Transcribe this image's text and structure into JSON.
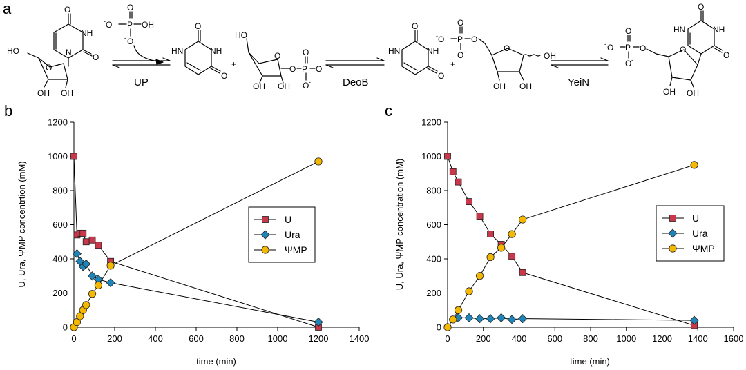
{
  "scheme": {
    "panel_label": "a",
    "enzymes": [
      "UP",
      "DeoB",
      "YeiN"
    ],
    "plus_signs": [
      "+",
      "+"
    ],
    "atoms": {
      "o": "O",
      "oh": "OH",
      "ho": "HO",
      "n": "N",
      "nh": "NH",
      "hn": "HN",
      "p": "P",
      "ominus": "O",
      "minus": "-"
    }
  },
  "chart_data": [
    {
      "panel_label": "b",
      "type": "line",
      "xlabel": "time (min)",
      "ylabel": "U, Ura,  ΨMP concentrtion (mM)",
      "xlim": [
        0,
        1400
      ],
      "ylim": [
        0,
        1200
      ],
      "xticks": [
        0,
        200,
        400,
        600,
        800,
        1000,
        1200,
        1400
      ],
      "yticks": [
        0,
        200,
        400,
        600,
        800,
        1000,
        1200
      ],
      "grid": false,
      "legend_position": "center-right",
      "series": [
        {
          "name": "U",
          "marker": "square",
          "color": "#c8374a",
          "x": [
            0,
            15,
            30,
            45,
            60,
            90,
            120,
            180,
            1200
          ],
          "y": [
            1000,
            540,
            550,
            550,
            500,
            510,
            480,
            385,
            0
          ]
        },
        {
          "name": "Ura",
          "marker": "diamond",
          "color": "#1f84b8",
          "x": [
            15,
            30,
            45,
            60,
            90,
            120,
            180,
            1200
          ],
          "y": [
            430,
            385,
            355,
            370,
            300,
            280,
            260,
            30
          ]
        },
        {
          "name": "ΨMP",
          "marker": "circle",
          "color": "#f5b800",
          "x": [
            0,
            15,
            30,
            45,
            60,
            90,
            120,
            180,
            1200
          ],
          "y": [
            0,
            30,
            65,
            100,
            130,
            195,
            245,
            360,
            970
          ]
        }
      ]
    },
    {
      "panel_label": "c",
      "type": "line",
      "xlabel": "time (min)",
      "ylabel": "U, Ura,  ΨMP concentration (mM)",
      "xlim": [
        0,
        1600
      ],
      "ylim": [
        0,
        1200
      ],
      "xticks": [
        0,
        200,
        400,
        600,
        800,
        1000,
        1200,
        1400,
        1600
      ],
      "yticks": [
        0,
        200,
        400,
        600,
        800,
        1000,
        1200
      ],
      "grid": false,
      "legend_position": "center-right",
      "series": [
        {
          "name": "U",
          "marker": "square",
          "color": "#c8374a",
          "x": [
            0,
            30,
            60,
            120,
            180,
            240,
            300,
            360,
            420,
            1380
          ],
          "y": [
            1000,
            910,
            850,
            735,
            650,
            545,
            485,
            415,
            320,
            10
          ]
        },
        {
          "name": "Ura",
          "marker": "diamond",
          "color": "#1f84b8",
          "x": [
            60,
            120,
            180,
            240,
            300,
            360,
            420,
            1380
          ],
          "y": [
            55,
            55,
            50,
            50,
            55,
            45,
            50,
            40
          ]
        },
        {
          "name": "ΨMP",
          "marker": "circle",
          "color": "#f5b800",
          "x": [
            0,
            30,
            60,
            120,
            180,
            240,
            300,
            360,
            420,
            1380
          ],
          "y": [
            0,
            45,
            100,
            210,
            300,
            410,
            465,
            545,
            630,
            950
          ]
        }
      ]
    }
  ]
}
